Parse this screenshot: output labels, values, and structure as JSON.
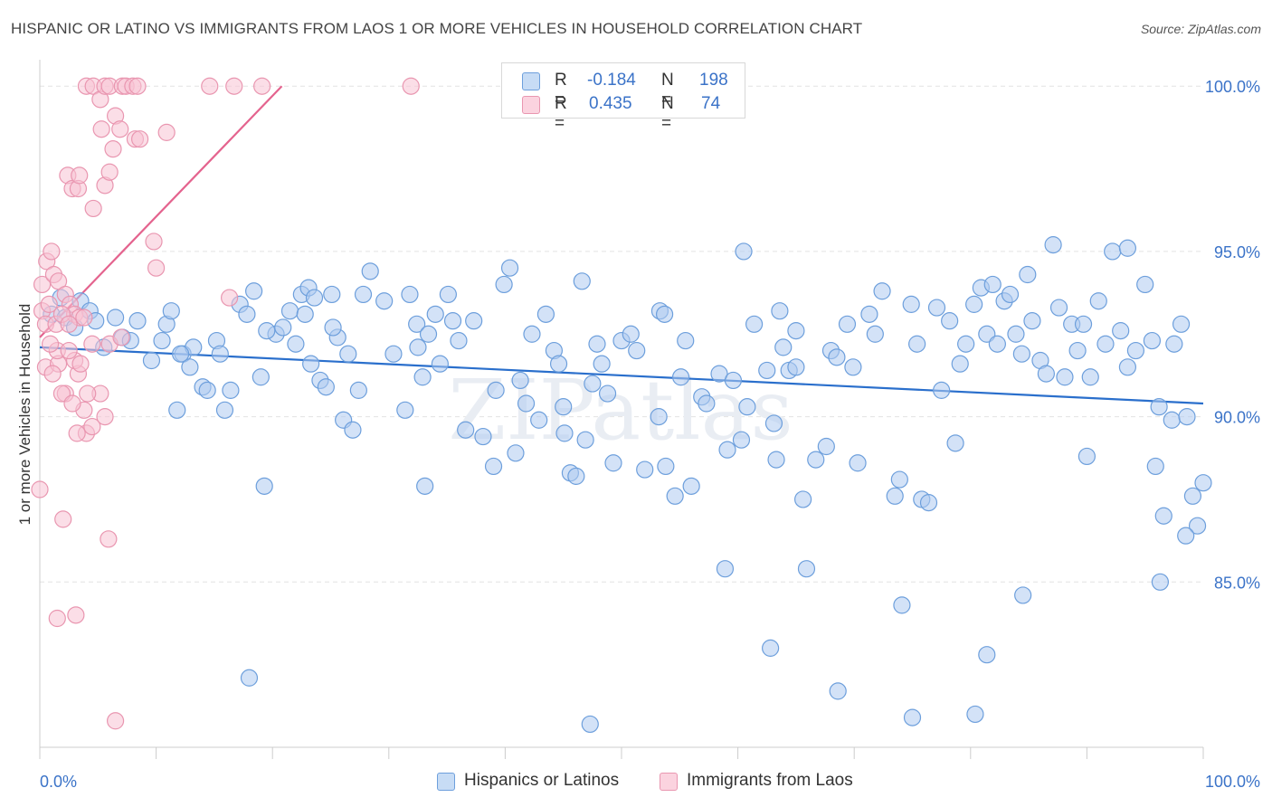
{
  "title": "HISPANIC OR LATINO VS IMMIGRANTS FROM LAOS 1 OR MORE VEHICLES IN HOUSEHOLD CORRELATION CHART",
  "source": "Source: ZipAtlas.com",
  "watermark": "ZIPatlas",
  "legend": {
    "rows": [
      {
        "r_label": "R =",
        "r_value": "-0.184",
        "n_label": "N =",
        "n_value": "198"
      },
      {
        "r_label": "R =",
        "r_value": "0.435",
        "n_label": "N =",
        "n_value": "74"
      }
    ]
  },
  "bottom_legend": [
    "Hispanics or Latinos",
    "Immigrants from Laos"
  ],
  "colors": {
    "blue_fill": "#aecbf0",
    "blue_stroke": "#6d9fdc",
    "blue_line": "#2a6fcc",
    "pink_fill": "#f7c3d3",
    "pink_stroke": "#e996b0",
    "pink_line": "#e4638e",
    "axis_text": "#3b73c8",
    "grid": "#e3e3e3"
  },
  "chart_data": {
    "type": "scatter",
    "title": "HISPANIC OR LATINO VS IMMIGRANTS FROM LAOS 1 OR MORE VEHICLES IN HOUSEHOLD CORRELATION CHART",
    "xlabel": "",
    "ylabel": "1 or more Vehicles in Household",
    "xlim": [
      0,
      100
    ],
    "ylim": [
      80.0,
      100.8
    ],
    "x_tick_labels": [
      "0.0%",
      "100.0%"
    ],
    "y_ticks": [
      85,
      90,
      95,
      100
    ],
    "y_tick_labels": [
      "85.0%",
      "90.0%",
      "95.0%",
      "100.0%"
    ],
    "grid": true,
    "legend_position": "top-center",
    "series": [
      {
        "name": "Hispanics or Latinos",
        "color": "#aecbf0",
        "trend": {
          "x": [
            0,
            100
          ],
          "y": [
            92.1,
            90.4
          ]
        },
        "points": [
          [
            1.0,
            93.1
          ],
          [
            1.8,
            93.6
          ],
          [
            2.2,
            93.0
          ],
          [
            3.0,
            92.7
          ],
          [
            3.5,
            93.5
          ],
          [
            4.3,
            93.2
          ],
          [
            4.8,
            92.9
          ],
          [
            5.5,
            92.1
          ],
          [
            6.5,
            93.0
          ],
          [
            7.1,
            92.4
          ],
          [
            7.8,
            92.3
          ],
          [
            8.4,
            92.9
          ],
          [
            9.6,
            91.7
          ],
          [
            10.5,
            92.3
          ],
          [
            10.9,
            92.8
          ],
          [
            11.3,
            93.2
          ],
          [
            11.8,
            90.2
          ],
          [
            12.3,
            91.9
          ],
          [
            12.9,
            91.5
          ],
          [
            13.2,
            92.1
          ],
          [
            14.0,
            90.9
          ],
          [
            14.4,
            90.8
          ],
          [
            15.2,
            92.3
          ],
          [
            15.5,
            91.9
          ],
          [
            15.9,
            90.2
          ],
          [
            16.4,
            90.8
          ],
          [
            17.2,
            93.4
          ],
          [
            17.8,
            93.1
          ],
          [
            18.4,
            93.8
          ],
          [
            19.0,
            91.2
          ],
          [
            19.3,
            87.9
          ],
          [
            20.3,
            92.5
          ],
          [
            20.9,
            92.7
          ],
          [
            21.5,
            93.2
          ],
          [
            22.0,
            92.2
          ],
          [
            22.5,
            93.7
          ],
          [
            23.1,
            93.9
          ],
          [
            23.6,
            93.6
          ],
          [
            24.1,
            91.1
          ],
          [
            24.6,
            90.9
          ],
          [
            25.1,
            93.7
          ],
          [
            25.6,
            92.4
          ],
          [
            26.1,
            89.9
          ],
          [
            26.5,
            91.9
          ],
          [
            26.9,
            89.6
          ],
          [
            27.4,
            90.8
          ],
          [
            27.8,
            93.7
          ],
          [
            28.4,
            94.4
          ],
          [
            29.6,
            93.5
          ],
          [
            30.4,
            91.9
          ],
          [
            31.4,
            90.2
          ],
          [
            31.8,
            93.7
          ],
          [
            32.4,
            92.8
          ],
          [
            32.9,
            91.2
          ],
          [
            33.4,
            92.5
          ],
          [
            34.0,
            93.1
          ],
          [
            34.4,
            91.6
          ],
          [
            35.1,
            93.7
          ],
          [
            35.5,
            92.9
          ],
          [
            36.0,
            92.3
          ],
          [
            36.6,
            89.6
          ],
          [
            37.3,
            92.9
          ],
          [
            38.1,
            89.4
          ],
          [
            39.2,
            90.8
          ],
          [
            39.9,
            94.0
          ],
          [
            40.4,
            94.5
          ],
          [
            40.9,
            88.9
          ],
          [
            41.3,
            91.1
          ],
          [
            41.8,
            90.4
          ],
          [
            42.3,
            92.5
          ],
          [
            42.9,
            89.9
          ],
          [
            43.5,
            93.1
          ],
          [
            44.2,
            92.0
          ],
          [
            44.6,
            91.6
          ],
          [
            45.1,
            89.5
          ],
          [
            45.6,
            88.3
          ],
          [
            46.1,
            88.2
          ],
          [
            46.6,
            94.1
          ],
          [
            46.9,
            89.3
          ],
          [
            47.5,
            91.0
          ],
          [
            47.9,
            92.2
          ],
          [
            48.3,
            91.6
          ],
          [
            48.8,
            90.7
          ],
          [
            49.3,
            88.6
          ],
          [
            50.0,
            92.3
          ],
          [
            50.8,
            92.5
          ],
          [
            51.3,
            92.0
          ],
          [
            52.0,
            88.4
          ],
          [
            53.3,
            93.2
          ],
          [
            53.7,
            93.1
          ],
          [
            54.6,
            87.6
          ],
          [
            55.1,
            91.2
          ],
          [
            55.5,
            92.3
          ],
          [
            56.0,
            87.9
          ],
          [
            56.9,
            90.6
          ],
          [
            57.3,
            90.4
          ],
          [
            58.4,
            91.3
          ],
          [
            59.1,
            89.0
          ],
          [
            59.6,
            91.1
          ],
          [
            60.3,
            89.3
          ],
          [
            60.8,
            90.3
          ],
          [
            61.4,
            92.8
          ],
          [
            62.5,
            91.4
          ],
          [
            63.1,
            89.8
          ],
          [
            63.6,
            93.2
          ],
          [
            63.9,
            92.1
          ],
          [
            64.4,
            91.4
          ],
          [
            65.0,
            91.5
          ],
          [
            65.6,
            87.5
          ],
          [
            66.7,
            88.7
          ],
          [
            67.6,
            89.1
          ],
          [
            68.0,
            92.0
          ],
          [
            68.5,
            91.8
          ],
          [
            69.4,
            92.8
          ],
          [
            69.9,
            91.5
          ],
          [
            70.3,
            88.6
          ],
          [
            71.3,
            93.1
          ],
          [
            71.8,
            92.5
          ],
          [
            72.4,
            93.8
          ],
          [
            73.5,
            87.6
          ],
          [
            73.9,
            88.1
          ],
          [
            74.9,
            93.4
          ],
          [
            75.4,
            92.2
          ],
          [
            75.8,
            87.5
          ],
          [
            76.4,
            87.4
          ],
          [
            77.1,
            93.3
          ],
          [
            77.5,
            90.8
          ],
          [
            78.2,
            92.9
          ],
          [
            78.7,
            89.2
          ],
          [
            79.1,
            91.6
          ],
          [
            79.6,
            92.2
          ],
          [
            80.3,
            93.4
          ],
          [
            80.9,
            93.9
          ],
          [
            81.4,
            92.5
          ],
          [
            81.9,
            94.0
          ],
          [
            82.3,
            92.2
          ],
          [
            82.9,
            93.5
          ],
          [
            83.4,
            93.7
          ],
          [
            83.9,
            92.5
          ],
          [
            84.4,
            91.9
          ],
          [
            84.9,
            94.3
          ],
          [
            85.3,
            92.9
          ],
          [
            86.0,
            91.7
          ],
          [
            86.5,
            91.3
          ],
          [
            87.1,
            95.2
          ],
          [
            87.6,
            93.3
          ],
          [
            88.1,
            91.2
          ],
          [
            88.7,
            92.8
          ],
          [
            89.2,
            92.0
          ],
          [
            89.7,
            92.8
          ],
          [
            90.3,
            91.2
          ],
          [
            91.0,
            93.5
          ],
          [
            91.6,
            92.2
          ],
          [
            92.2,
            95.0
          ],
          [
            92.9,
            92.6
          ],
          [
            93.5,
            91.5
          ],
          [
            94.2,
            92.0
          ],
          [
            95.0,
            94.0
          ],
          [
            95.6,
            92.3
          ],
          [
            96.2,
            90.3
          ],
          [
            96.6,
            87.0
          ],
          [
            97.3,
            89.9
          ],
          [
            98.1,
            92.8
          ],
          [
            98.6,
            90.0
          ],
          [
            99.1,
            87.6
          ],
          [
            99.5,
            86.7
          ],
          [
            100.0,
            88.0
          ],
          [
            19.5,
            92.6
          ],
          [
            22.8,
            93.1
          ],
          [
            33.1,
            87.9
          ],
          [
            18.0,
            82.1
          ],
          [
            23.3,
            91.6
          ],
          [
            58.9,
            85.4
          ],
          [
            62.8,
            83.0
          ],
          [
            65.9,
            85.4
          ],
          [
            68.6,
            81.7
          ],
          [
            74.1,
            84.3
          ],
          [
            75.0,
            80.9
          ],
          [
            80.4,
            81.0
          ],
          [
            81.4,
            82.8
          ],
          [
            53.8,
            88.5
          ],
          [
            53.2,
            90.0
          ],
          [
            47.3,
            80.7
          ],
          [
            63.3,
            88.7
          ],
          [
            84.5,
            84.6
          ],
          [
            32.5,
            92.1
          ],
          [
            97.5,
            92.2
          ],
          [
            96.3,
            85.0
          ],
          [
            12.1,
            91.9
          ],
          [
            25.2,
            92.7
          ],
          [
            93.5,
            95.1
          ],
          [
            98.5,
            86.4
          ],
          [
            95.9,
            88.5
          ],
          [
            90.0,
            88.8
          ],
          [
            60.5,
            95.0
          ],
          [
            65.0,
            92.6
          ],
          [
            45.0,
            90.3
          ],
          [
            39.0,
            88.5
          ]
        ]
      },
      {
        "name": "Immigrants from Laos",
        "color": "#f7c3d3",
        "trend": {
          "x": [
            0,
            20.8
          ],
          "y": [
            92.4,
            100.0
          ]
        },
        "points": [
          [
            4.0,
            100.0
          ],
          [
            4.6,
            100.0
          ],
          [
            5.2,
            99.6
          ],
          [
            5.6,
            100.0
          ],
          [
            6.0,
            100.0
          ],
          [
            7.1,
            100.0
          ],
          [
            7.4,
            100.0
          ],
          [
            8.0,
            100.0
          ],
          [
            8.4,
            100.0
          ],
          [
            14.6,
            100.0
          ],
          [
            16.7,
            100.0
          ],
          [
            19.1,
            100.0
          ],
          [
            31.9,
            100.0
          ],
          [
            5.3,
            98.7
          ],
          [
            6.3,
            98.1
          ],
          [
            6.5,
            99.1
          ],
          [
            6.9,
            98.7
          ],
          [
            8.2,
            98.4
          ],
          [
            8.6,
            98.4
          ],
          [
            10.9,
            98.6
          ],
          [
            2.4,
            97.3
          ],
          [
            2.8,
            96.9
          ],
          [
            3.3,
            96.9
          ],
          [
            3.4,
            97.3
          ],
          [
            4.6,
            96.3
          ],
          [
            5.6,
            97.0
          ],
          [
            6.0,
            97.4
          ],
          [
            9.8,
            95.3
          ],
          [
            10.0,
            94.5
          ],
          [
            0.2,
            94.0
          ],
          [
            0.6,
            94.7
          ],
          [
            1.0,
            95.0
          ],
          [
            1.2,
            94.3
          ],
          [
            1.6,
            94.1
          ],
          [
            2.2,
            93.7
          ],
          [
            2.6,
            93.4
          ],
          [
            3.0,
            93.1
          ],
          [
            3.4,
            93.0
          ],
          [
            0.2,
            93.2
          ],
          [
            0.5,
            92.8
          ],
          [
            0.8,
            93.4
          ],
          [
            1.4,
            92.8
          ],
          [
            1.9,
            93.1
          ],
          [
            2.5,
            92.8
          ],
          [
            3.8,
            93.0
          ],
          [
            4.5,
            92.2
          ],
          [
            6.0,
            92.2
          ],
          [
            7.0,
            92.4
          ],
          [
            0.5,
            91.5
          ],
          [
            1.6,
            91.6
          ],
          [
            2.2,
            90.7
          ],
          [
            3.3,
            91.3
          ],
          [
            1.9,
            90.7
          ],
          [
            4.0,
            89.5
          ],
          [
            5.2,
            90.7
          ],
          [
            3.2,
            89.5
          ],
          [
            4.5,
            89.7
          ],
          [
            3.8,
            90.2
          ],
          [
            5.6,
            90.0
          ],
          [
            2.8,
            90.4
          ],
          [
            1.5,
            92.0
          ],
          [
            3.0,
            91.7
          ],
          [
            16.3,
            93.6
          ],
          [
            0.0,
            87.8
          ],
          [
            2.0,
            86.9
          ],
          [
            5.9,
            86.3
          ],
          [
            3.1,
            84.0
          ],
          [
            1.5,
            83.9
          ],
          [
            6.5,
            80.8
          ],
          [
            4.1,
            90.7
          ],
          [
            1.1,
            91.3
          ],
          [
            0.9,
            92.2
          ],
          [
            3.5,
            91.6
          ],
          [
            2.5,
            92.0
          ]
        ]
      }
    ]
  }
}
